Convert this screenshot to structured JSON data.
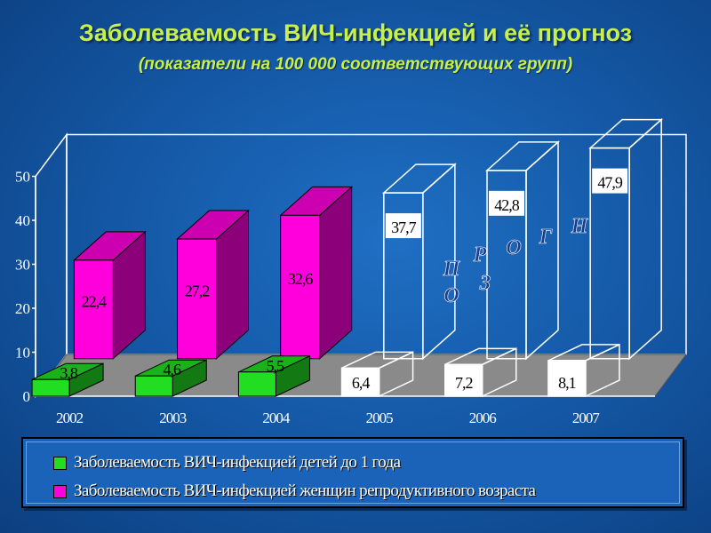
{
  "header": {
    "title": "Заболеваемость ВИЧ-инфекцией и её прогноз",
    "subtitle": "(показатели на 100 000 соответствующих групп)"
  },
  "chart_data": {
    "type": "bar",
    "categories": [
      "2002",
      "2003",
      "2004",
      "2005",
      "2006",
      "2007"
    ],
    "ylim": [
      0,
      50
    ],
    "yticks": [
      "0",
      "10",
      "20",
      "30",
      "40",
      "50"
    ],
    "series": [
      {
        "name": "Заболеваемость ВИЧ-инфекцией детей до 1 года",
        "color": "#22dd22",
        "values": [
          3.8,
          4.6,
          5.5,
          6.4,
          7.2,
          8.1
        ],
        "labels": [
          "3,8",
          "4,6",
          "5,5",
          "6,4",
          "7,2",
          "8,1"
        ]
      },
      {
        "name": "Заболеваемость ВИЧ-инфекцией женщин репродуктивного возраста",
        "color": "#ff00dd",
        "values": [
          22.4,
          27.2,
          32.6,
          37.7,
          42.8,
          47.9
        ],
        "labels": [
          "22,4",
          "27,2",
          "32,6",
          "37,7",
          "42,8",
          "47,9"
        ]
      }
    ],
    "forecast_from_index": 3,
    "forecast_label_row1": [
      "П",
      "Р",
      "О",
      "Г",
      "Н"
    ],
    "forecast_label_row2": [
      "О",
      "З"
    ]
  }
}
